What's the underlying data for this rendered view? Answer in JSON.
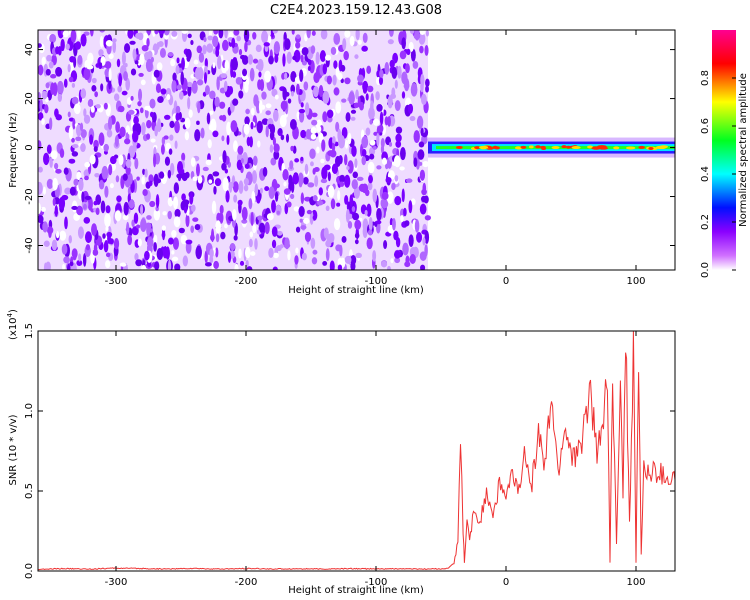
{
  "title": "C2E4.2023.159.12.43.G08",
  "chart_data": [
    {
      "type": "heatmap",
      "xlabel": "Height of straight line (km)",
      "ylabel": "Frequency (Hz)",
      "xlim": [
        -360,
        130
      ],
      "ylim": [
        -50,
        48
      ],
      "xticks": [
        -300,
        -200,
        -100,
        0,
        100
      ],
      "xtick_labels": [
        "-300",
        "-200",
        "-100",
        "0",
        "100"
      ],
      "yticks": [
        -40,
        -20,
        0,
        20,
        40
      ],
      "ytick_labels": [
        "-40",
        "-20",
        "0",
        "20",
        "40"
      ],
      "noise_region_x": [
        -360,
        -60
      ],
      "signal_region_x": [
        -60,
        130
      ],
      "signal_frequency_hz": 0,
      "colorbar": {
        "label": "Normalized spectral amplitude",
        "range": [
          0.0,
          1.0
        ],
        "ticks": [
          0.0,
          0.2,
          0.4,
          0.6,
          0.8
        ],
        "tick_labels": [
          "0.0",
          "0.2",
          "0.4",
          "0.6",
          "0.8"
        ],
        "colors": [
          "#ffffff",
          "#8a00ff",
          "#0000ff",
          "#00ffff",
          "#00ff00",
          "#ffff00",
          "#ff0000",
          "#ff0080"
        ]
      }
    },
    {
      "type": "line",
      "xlabel": "Height of straight line (km)",
      "ylabel": "SNR (10 * v/v)",
      "scale_label": "(x10",
      "scale_exponent": "4",
      "scale_close": ")",
      "xlim": [
        -360,
        130
      ],
      "ylim": [
        0,
        1.5
      ],
      "xticks": [
        -300,
        -200,
        -100,
        0,
        100
      ],
      "xtick_labels": [
        "-300",
        "-200",
        "-100",
        "0",
        "100"
      ],
      "yticks": [
        0.0,
        0.5,
        1.0,
        1.5
      ],
      "ytick_labels": [
        "0.0",
        "0.5",
        "1.0",
        "1.5"
      ],
      "line_color": "#ee3333",
      "series": [
        {
          "x": [
            -360,
            -340,
            -320,
            -300,
            -280,
            -260,
            -240,
            -220,
            -200,
            -180,
            -160,
            -140,
            -120,
            -100,
            -80,
            -60,
            -45,
            -40,
            -37,
            -35,
            -33,
            -32,
            -30,
            -28,
            -25,
            -20,
            -15,
            -10,
            -5,
            0,
            5,
            10,
            15,
            20,
            25,
            30,
            35,
            40,
            45,
            50,
            55,
            60,
            65,
            70,
            75,
            78,
            80,
            82,
            85,
            88,
            90,
            92,
            95,
            98,
            100,
            102,
            104,
            106,
            110,
            115,
            120,
            125,
            130
          ],
          "y": [
            0.01,
            0.015,
            0.012,
            0.018,
            0.015,
            0.013,
            0.016,
            0.012,
            0.015,
            0.013,
            0.014,
            0.012,
            0.015,
            0.013,
            0.014,
            0.012,
            0.015,
            0.05,
            0.18,
            0.82,
            0.25,
            0.05,
            0.3,
            0.2,
            0.35,
            0.3,
            0.5,
            0.35,
            0.55,
            0.45,
            0.6,
            0.5,
            0.75,
            0.55,
            0.85,
            0.65,
            1.1,
            0.6,
            0.9,
            0.75,
            0.7,
            0.9,
            1.15,
            0.7,
            0.95,
            1.2,
            0.05,
            1.25,
            0.15,
            1.3,
            0.45,
            1.5,
            0.3,
            1.4,
            0.05,
            1.3,
            0.1,
            0.65,
            0.6,
            0.62,
            0.6,
            0.58,
            0.57
          ]
        }
      ]
    }
  ]
}
